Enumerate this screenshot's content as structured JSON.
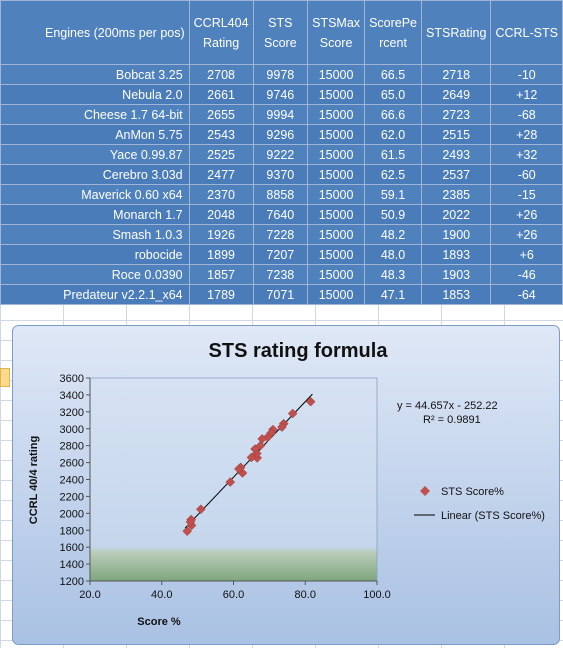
{
  "table": {
    "headers": [
      "Engines (200ms per pos)",
      "CCRL404 Rating",
      "STS Score",
      "STSMax Score",
      "ScorePe rcent",
      "STSRating",
      "CCRL-STS"
    ],
    "header_lines": [
      [
        "Engines (200ms per pos)"
      ],
      [
        "CCRL404",
        "Rating"
      ],
      [
        "STS",
        "Score"
      ],
      [
        "STSMax",
        "Score"
      ],
      [
        "ScorePe",
        "rcent"
      ],
      [
        "STSRating"
      ],
      [
        "CCRL-STS"
      ]
    ],
    "rows": [
      [
        "Bobcat 3.25",
        "2708",
        "9978",
        "15000",
        "66.5",
        "2718",
        "-10"
      ],
      [
        "Nebula 2.0",
        "2661",
        "9746",
        "15000",
        "65.0",
        "2649",
        "+12"
      ],
      [
        "Cheese 1.7 64-bit",
        "2655",
        "9994",
        "15000",
        "66.6",
        "2723",
        "-68"
      ],
      [
        "AnMon 5.75",
        "2543",
        "9296",
        "15000",
        "62.0",
        "2515",
        "+28"
      ],
      [
        "Yace 0.99.87",
        "2525",
        "9222",
        "15000",
        "61.5",
        "2493",
        "+32"
      ],
      [
        "Cerebro 3.03d",
        "2477",
        "9370",
        "15000",
        "62.5",
        "2537",
        "-60"
      ],
      [
        "Maverick 0.60 x64",
        "2370",
        "8858",
        "15000",
        "59.1",
        "2385",
        "-15"
      ],
      [
        "Monarch 1.7",
        "2048",
        "7640",
        "15000",
        "50.9",
        "2022",
        "+26"
      ],
      [
        "Smash 1.0.3",
        "1926",
        "7228",
        "15000",
        "48.2",
        "1900",
        "+26"
      ],
      [
        "robocide",
        "1899",
        "7207",
        "15000",
        "48.0",
        "1893",
        "+6"
      ],
      [
        "Roce 0.0390",
        "1857",
        "7238",
        "15000",
        "48.3",
        "1903",
        "-46"
      ],
      [
        "Predateur v2.2.1_x64",
        "1789",
        "7071",
        "15000",
        "47.1",
        "1853",
        "-64"
      ]
    ]
  },
  "chart_data": {
    "type": "scatter",
    "title": "STS rating formula",
    "xlabel": "Score %",
    "ylabel": "CCRL 40/4 rating",
    "xlim": [
      20.0,
      100.0
    ],
    "ylim": [
      1200,
      3600
    ],
    "x_ticks": [
      "20.0",
      "40.0",
      "60.0",
      "80.0",
      "100.0"
    ],
    "y_ticks": [
      "1200",
      "1400",
      "1600",
      "1800",
      "2000",
      "2200",
      "2400",
      "2600",
      "2800",
      "3000",
      "3200",
      "3400",
      "3600"
    ],
    "grid": false,
    "legend_position": "right",
    "series": [
      {
        "name": "STS Score%",
        "marker": "diamond",
        "color": "#c0504d",
        "x": [
          81.5,
          76.5,
          74.0,
          73.5,
          71.0,
          70.5,
          69.5,
          68.0,
          67.5,
          66.6,
          66.5,
          66.0,
          65.0,
          62.5,
          62.0,
          61.5,
          59.1,
          50.9,
          48.3,
          48.2,
          48.0,
          47.1
        ],
        "y": [
          3320,
          3180,
          3060,
          3020,
          2990,
          2950,
          2900,
          2880,
          2800,
          2655,
          2708,
          2760,
          2661,
          2477,
          2543,
          2525,
          2370,
          2048,
          1857,
          1926,
          1899,
          1789
        ]
      }
    ],
    "trendline": {
      "name": "Linear (STS Score%)",
      "type": "linear",
      "slope": 44.657,
      "intercept": -252.22,
      "x_range": [
        46.5,
        82.0
      ],
      "equation": "y = 44.657x - 252.22",
      "r2": "R² = 0.9891",
      "color": "#000000"
    },
    "colors": {
      "chart_bg": "#b8cbe6",
      "plot_bg": "#cbd9ee",
      "plot_bottom_band": "#9ab89a",
      "marker": "#c0504d"
    }
  }
}
